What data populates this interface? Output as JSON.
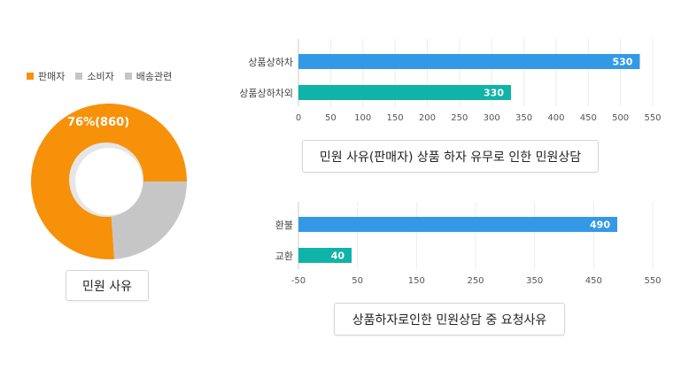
{
  "colors": {
    "orange": "#f7910a",
    "gray": "#c6c6c6",
    "blue": "#3399e6",
    "teal": "#10b3a8"
  },
  "chart_data": [
    {
      "type": "pie",
      "variant": "donut",
      "legend": [
        "판매자",
        "소비자",
        "배송관련"
      ],
      "slices": [
        {
          "name": "판매자",
          "value": 860,
          "percent": 76,
          "label": "76%(860)"
        },
        {
          "name": "소비자",
          "value": 270,
          "percent": 24
        },
        {
          "name": "배송관련",
          "value": 0,
          "percent": 0
        }
      ],
      "legend_position": "top",
      "title": "민원 사유"
    },
    {
      "type": "bar",
      "orientation": "horizontal",
      "categories": [
        "상품상하차",
        "상품상하차외"
      ],
      "values": [
        530,
        330
      ],
      "xlim": [
        0,
        550
      ],
      "xticks": [
        0,
        50,
        100,
        150,
        200,
        250,
        300,
        350,
        400,
        450,
        500,
        550
      ],
      "grid": true,
      "title": "민원 사유(판매자) 상품 하자 유무로 인한 민원상담"
    },
    {
      "type": "bar",
      "orientation": "horizontal",
      "categories": [
        "환불",
        "교환"
      ],
      "values": [
        490,
        40
      ],
      "xlim": [
        -50,
        550
      ],
      "xticks": [
        -50,
        50,
        150,
        250,
        350,
        450,
        550
      ],
      "grid": true,
      "title": "상품하자로인한 민원상담 중 요청사유"
    }
  ]
}
